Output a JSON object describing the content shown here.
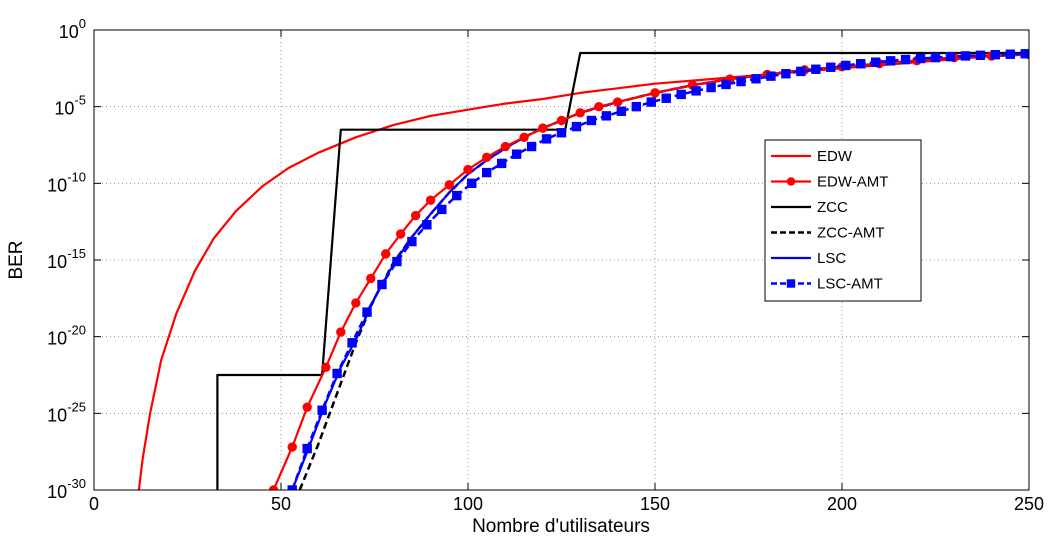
{
  "chart_data": {
    "type": "line",
    "title": "",
    "xlabel": "Nombre d'utilisateurs",
    "ylabel": "BER",
    "y_scale": "log",
    "xlim": [
      0,
      250
    ],
    "ylim_exponent": [
      -30,
      0
    ],
    "x_ticks": [
      "0",
      "50",
      "100",
      "150",
      "200",
      "250"
    ],
    "y_ticks": [
      {
        "base": "10",
        "exp": "0"
      },
      {
        "base": "10",
        "exp": "-5"
      },
      {
        "base": "10",
        "exp": "-10"
      },
      {
        "base": "10",
        "exp": "-15"
      },
      {
        "base": "10",
        "exp": "-20"
      },
      {
        "base": "10",
        "exp": "-25"
      },
      {
        "base": "10",
        "exp": "-30"
      }
    ],
    "grid": true,
    "legend_position": "right-center",
    "series": [
      {
        "name": "EDW",
        "color": "#ff0000",
        "line": "solid",
        "marker": "none",
        "x": [
          12,
          13,
          15,
          18,
          22,
          27,
          32,
          38,
          45,
          52,
          60,
          70,
          80,
          90,
          100,
          110,
          120,
          130,
          140,
          150,
          160,
          170,
          180,
          190,
          200,
          210,
          220,
          230,
          240,
          250
        ],
        "log10_y": [
          -30,
          -28,
          -25,
          -21.5,
          -18.5,
          -15.7,
          -13.6,
          -11.8,
          -10.2,
          -9,
          -8,
          -7,
          -6.2,
          -5.6,
          -5.2,
          -4.8,
          -4.5,
          -4.1,
          -3.8,
          -3.5,
          -3.3,
          -3.1,
          -2.9,
          -2.7,
          -2.5,
          -2.3,
          -2.1,
          -1.9,
          -1.7,
          -1.5
        ]
      },
      {
        "name": "EDW-AMT",
        "color": "#ff0000",
        "line": "solid",
        "marker": "circle",
        "x": [
          48,
          53,
          57,
          62,
          66,
          70,
          74,
          78,
          82,
          86,
          90,
          95,
          100,
          105,
          110,
          115,
          120,
          125,
          130,
          135,
          140,
          150,
          160,
          170,
          180,
          190,
          200,
          210,
          220,
          230,
          240,
          250
        ],
        "log10_y": [
          -30,
          -27.2,
          -24.6,
          -22,
          -19.7,
          -17.8,
          -16.2,
          -14.6,
          -13.3,
          -12.1,
          -11.1,
          -10.1,
          -9.1,
          -8.3,
          -7.6,
          -7,
          -6.4,
          -5.9,
          -5.4,
          -5,
          -4.7,
          -4.1,
          -3.6,
          -3.2,
          -2.9,
          -2.6,
          -2.4,
          -2.2,
          -2,
          -1.8,
          -1.7,
          -1.6
        ]
      },
      {
        "name": "ZCC",
        "color": "#000000",
        "line": "solid",
        "marker": "none",
        "x": [
          33,
          33,
          61,
          66,
          126,
          130,
          250
        ],
        "log10_y": [
          -30,
          -22.5,
          -22.5,
          -6.5,
          -6.5,
          -1.5,
          -1.5
        ]
      },
      {
        "name": "ZCC-AMT",
        "color": "#000000",
        "line": "dashed",
        "marker": "none",
        "x": [
          55,
          60,
          65,
          70,
          75,
          80,
          85,
          90,
          95,
          100,
          105,
          110,
          115,
          120,
          125,
          130,
          140,
          150,
          160,
          170,
          180,
          190,
          200,
          210,
          220,
          230,
          240,
          250
        ],
        "log10_y": [
          -30,
          -27,
          -23.7,
          -20.4,
          -17.5,
          -15.2,
          -13.5,
          -12,
          -10.6,
          -9.4,
          -8.5,
          -7.7,
          -7,
          -6.4,
          -5.9,
          -5.4,
          -4.7,
          -4.1,
          -3.6,
          -3.2,
          -2.9,
          -2.6,
          -2.4,
          -2.2,
          -2,
          -1.8,
          -1.7,
          -1.6
        ]
      },
      {
        "name": "LSC",
        "color": "#0000ff",
        "line": "solid",
        "marker": "none",
        "x": [
          53,
          57,
          62,
          66,
          70,
          75,
          80,
          85,
          90,
          95,
          100,
          105,
          110,
          115,
          120,
          125,
          130,
          140,
          150,
          160,
          170,
          180,
          190,
          200,
          210,
          220,
          230,
          240,
          250
        ],
        "log10_y": [
          -30,
          -27.5,
          -24.3,
          -22,
          -20.2,
          -17.5,
          -15.3,
          -13.5,
          -12,
          -10.6,
          -9.4,
          -8.5,
          -7.7,
          -7,
          -6.4,
          -5.9,
          -5.4,
          -4.7,
          -4.1,
          -3.6,
          -3.2,
          -2.9,
          -2.6,
          -2.4,
          -2.2,
          -2,
          -1.8,
          -1.7,
          -1.6
        ]
      },
      {
        "name": "LSC-AMT",
        "color": "#0000ff",
        "line": "dashed",
        "marker": "square",
        "x": [
          53,
          57,
          61,
          65,
          69,
          73,
          77,
          81,
          85,
          89,
          93,
          97,
          101,
          105,
          109,
          113,
          117,
          121,
          125,
          129,
          133,
          137,
          141,
          145,
          149,
          153,
          157,
          161,
          165,
          169,
          173,
          177,
          181,
          185,
          189,
          193,
          197,
          201,
          205,
          209,
          213,
          217,
          221,
          225,
          229,
          233,
          237,
          241,
          245,
          249
        ],
        "log10_y": [
          -30,
          -27.3,
          -24.8,
          -22.4,
          -20.4,
          -18.4,
          -16.6,
          -15.1,
          -13.8,
          -12.7,
          -11.7,
          -10.8,
          -10,
          -9.3,
          -8.7,
          -8.1,
          -7.6,
          -7.1,
          -6.7,
          -6.3,
          -5.9,
          -5.6,
          -5.3,
          -5,
          -4.7,
          -4.45,
          -4.2,
          -3.97,
          -3.75,
          -3.55,
          -3.36,
          -3.18,
          -3.01,
          -2.85,
          -2.7,
          -2.56,
          -2.43,
          -2.31,
          -2.2,
          -2.1,
          -2.01,
          -1.93,
          -1.86,
          -1.8,
          -1.74,
          -1.69,
          -1.65,
          -1.61,
          -1.58,
          -1.55
        ]
      }
    ]
  }
}
